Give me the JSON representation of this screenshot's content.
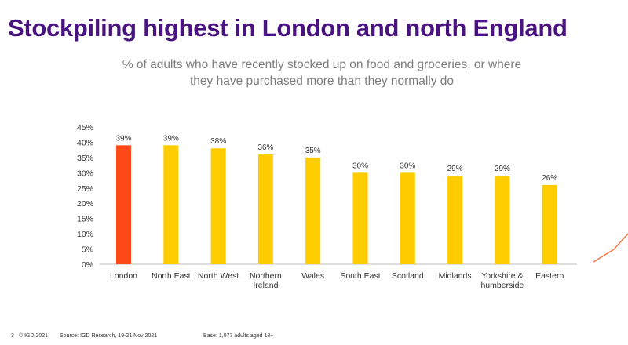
{
  "title": "Stockpiling highest in London and north England",
  "subtitle_line1": "% of adults who have recently stocked up on food and groceries, or where",
  "subtitle_line2": "they have purchased more than they normally do",
  "footer": {
    "page": "3",
    "copyright": "© IGD 2021",
    "source": "Source: IGD Research, 19-21 Nov 2021",
    "base": "Base: 1,077 adults aged 18+"
  },
  "colors": {
    "title": "#4a1480",
    "highlight": "#ff4a17",
    "bar": "#ffcc00",
    "accent": "#ff5a1f"
  },
  "chart_data": {
    "type": "bar",
    "categories": [
      "London",
      "North East",
      "North West",
      "Northern Ireland",
      "Wales",
      "South East",
      "Scotland",
      "Midlands",
      "Yorkshire & humberside",
      "Eastern"
    ],
    "category_lines": [
      [
        "London"
      ],
      [
        "North East"
      ],
      [
        "North West"
      ],
      [
        "Northern",
        "Ireland"
      ],
      [
        "Wales"
      ],
      [
        "South East"
      ],
      [
        "Scotland"
      ],
      [
        "Midlands"
      ],
      [
        "Yorkshire &",
        "humberside"
      ],
      [
        "Eastern"
      ]
    ],
    "values": [
      39,
      39,
      38,
      36,
      35,
      30,
      30,
      29,
      29,
      26
    ],
    "value_labels": [
      "39%",
      "39%",
      "38%",
      "36%",
      "35%",
      "30%",
      "30%",
      "29%",
      "29%",
      "26%"
    ],
    "highlight_index": 0,
    "y_ticks": [
      "0%",
      "5%",
      "10%",
      "15%",
      "20%",
      "25%",
      "30%",
      "35%",
      "40%",
      "45%"
    ],
    "ylim": [
      0,
      45
    ],
    "grid": false,
    "legend": "none"
  }
}
